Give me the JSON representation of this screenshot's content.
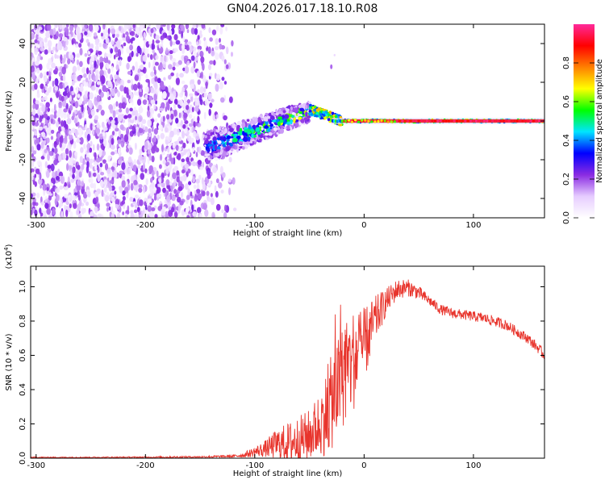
{
  "figure": {
    "title": "GN04.2026.017.18.10.R08"
  },
  "chart_data": [
    {
      "type": "heatmap",
      "xlabel": "Height of straight line (km)",
      "ylabel": "Frequency (Hz)",
      "xlim": [
        -305,
        165
      ],
      "ylim": [
        -50,
        50
      ],
      "x_ticks": [
        -300,
        -200,
        -100,
        0,
        100
      ],
      "y_ticks": [
        -40,
        -20,
        0,
        20,
        40
      ],
      "colorbar": {
        "label": "Normalized spectral amplitude",
        "range": [
          0,
          1
        ],
        "ticks": [
          0.0,
          0.2,
          0.4,
          0.6,
          0.8
        ],
        "colors": [
          "#ffffff",
          "#e6ccff",
          "#8a2be2",
          "#0000ff",
          "#00e5ff",
          "#00ff00",
          "#ffff00",
          "#ff8000",
          "#ff0000",
          "#ff2a9a"
        ]
      },
      "features": {
        "noise_region_km": [
          -305,
          -125
        ],
        "rising_segment": {
          "start": [
            -145,
            -14
          ],
          "end": [
            -50,
            5
          ]
        },
        "peak_near": [
          -50,
          6
        ],
        "stable_line": {
          "start_km": -20,
          "end_km": 165,
          "frequency_hz": 0
        },
        "outlier_point": [
          -30,
          28
        ]
      }
    },
    {
      "type": "line",
      "xlabel": "Height of straight line (km)",
      "ylabel": "SNR (10 * v/v)",
      "multiplier_label": "(x10",
      "multiplier_exponent": "4",
      "multiplier_close": ")",
      "xlim": [
        -305,
        165
      ],
      "ylim": [
        0,
        1.12
      ],
      "x_ticks": [
        -300,
        -200,
        -100,
        0,
        100
      ],
      "y_ticks": [
        0.0,
        0.2,
        0.4,
        0.6,
        0.8,
        1.0
      ],
      "series": [
        {
          "name": "SNR",
          "color": "#e8342c",
          "x": [
            -305,
            -250,
            -200,
            -150,
            -120,
            -110,
            -100,
            -90,
            -80,
            -70,
            -60,
            -50,
            -40,
            -30,
            -20,
            -10,
            0,
            10,
            20,
            30,
            40,
            50,
            60,
            70,
            80,
            90,
            100,
            110,
            120,
            130,
            140,
            150,
            160,
            165
          ],
          "y": [
            0.005,
            0.005,
            0.006,
            0.008,
            0.012,
            0.02,
            0.04,
            0.06,
            0.09,
            0.1,
            0.12,
            0.15,
            0.22,
            0.35,
            0.5,
            0.6,
            0.68,
            0.82,
            0.92,
            0.99,
            1.0,
            0.97,
            0.92,
            0.87,
            0.85,
            0.84,
            0.83,
            0.82,
            0.8,
            0.78,
            0.74,
            0.7,
            0.64,
            0.6
          ],
          "noise_amplitude": [
            0.003,
            0.003,
            0.004,
            0.005,
            0.008,
            0.015,
            0.03,
            0.05,
            0.09,
            0.12,
            0.14,
            0.15,
            0.2,
            0.28,
            0.3,
            0.3,
            0.22,
            0.14,
            0.08,
            0.06,
            0.05,
            0.04,
            0.03,
            0.03,
            0.03,
            0.03,
            0.03,
            0.03,
            0.03,
            0.03,
            0.03,
            0.03,
            0.03,
            0.03
          ]
        }
      ]
    }
  ]
}
